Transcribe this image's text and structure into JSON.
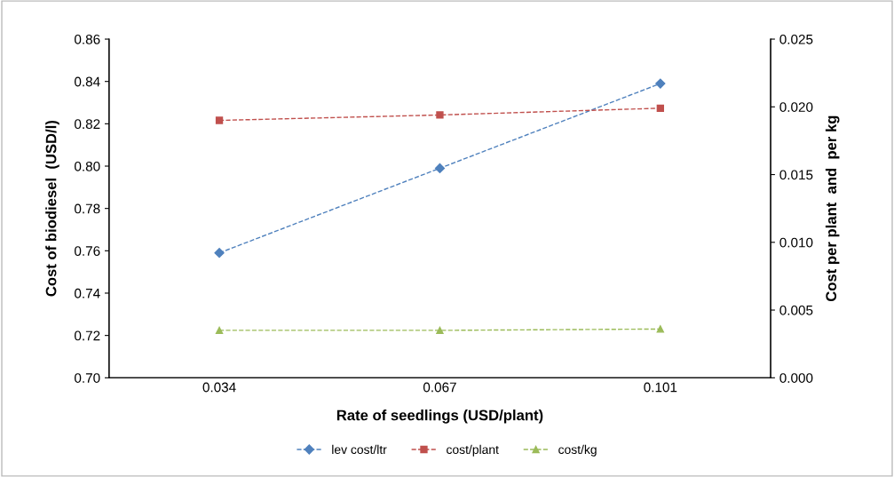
{
  "chart_data": {
    "type": "line",
    "xlabel": "Rate of seedlings (USD/plant)",
    "ylabel": "Cost of biodiesel  (USD/l)",
    "y2label": "Cost per plant  and  per kg",
    "categories": [
      "0.034",
      "0.067",
      "0.101"
    ],
    "series": [
      {
        "name": "lev cost/ltr",
        "color": "#4f81bd",
        "values": [
          0.759,
          0.799,
          0.839
        ],
        "marker": "diamond"
      },
      {
        "name": "cost/plant",
        "color": "#c0504d",
        "values": [
          0.019,
          0.0194,
          0.0199
        ],
        "axis": "y2",
        "marker": "square"
      },
      {
        "name": "cost/kg",
        "color": "#9bbb59",
        "values": [
          0.0035,
          0.0035,
          0.0036
        ],
        "axis": "y2",
        "marker": "triangle"
      }
    ],
    "ylim": [
      0.7,
      0.86
    ],
    "yticks": [
      {
        "value": 0.7,
        "label": "0.70"
      },
      {
        "value": 0.72,
        "label": "0.72"
      },
      {
        "value": 0.74,
        "label": "0.74"
      },
      {
        "value": 0.76,
        "label": "0.76"
      },
      {
        "value": 0.78,
        "label": "0.78"
      },
      {
        "value": 0.8,
        "label": "0.80"
      },
      {
        "value": 0.82,
        "label": "0.82"
      },
      {
        "value": 0.84,
        "label": "0.84"
      },
      {
        "value": 0.86,
        "label": "0.86"
      }
    ],
    "y2lim": [
      0,
      0.025
    ],
    "y2ticks": [
      {
        "value": 0,
        "label": "0.000"
      },
      {
        "value": 0.005,
        "label": "0.005"
      },
      {
        "value": 0.01,
        "label": "0.010"
      },
      {
        "value": 0.015,
        "label": "0.015"
      },
      {
        "value": 0.02,
        "label": "0.020"
      },
      {
        "value": 0.025,
        "label": "0.025"
      }
    ],
    "line_style": "dashed",
    "legend": "bottom",
    "grid": false
  }
}
